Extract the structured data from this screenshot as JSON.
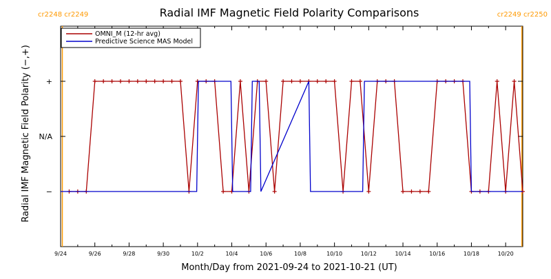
{
  "chart_data": {
    "type": "line",
    "title": "Radial IMF Magnetic Field Polarity Comparisons",
    "xlabel": "Month/Day from 2021-09-24 to 2021-10-21 (UT)",
    "ylabel": "Radial IMF Magnetic Field Polarity (−,+)",
    "x_range_days": [
      0,
      27
    ],
    "y_levels": {
      "-": -1,
      "N/A": 0,
      "+": 1
    },
    "ylim": [
      -2,
      2
    ],
    "y_ticks": [
      {
        "value": 1,
        "label": "+"
      },
      {
        "value": 0,
        "label": "N/A"
      },
      {
        "value": -1,
        "label": "−"
      }
    ],
    "x_ticks": [
      {
        "day": 0,
        "label": "9/24"
      },
      {
        "day": 2,
        "label": "9/26"
      },
      {
        "day": 4,
        "label": "9/28"
      },
      {
        "day": 6,
        "label": "9/30"
      },
      {
        "day": 8,
        "label": "10/2"
      },
      {
        "day": 10,
        "label": "10/4"
      },
      {
        "day": 12,
        "label": "10/6"
      },
      {
        "day": 14,
        "label": "10/8"
      },
      {
        "day": 16,
        "label": "10/10"
      },
      {
        "day": 18,
        "label": "10/12"
      },
      {
        "day": 20,
        "label": "10/14"
      },
      {
        "day": 22,
        "label": "10/16"
      },
      {
        "day": 24,
        "label": "10/18"
      },
      {
        "day": 26,
        "label": "10/20"
      }
    ],
    "carrington_markers": [
      {
        "day": 0.1,
        "label": "cr2248 cr2249",
        "side": "left"
      },
      {
        "day": 26.95,
        "label": "cr2249 cr2250",
        "side": "right"
      }
    ],
    "legend_position": "top-left",
    "series": [
      {
        "name": "OMNI_M (12-hr avg)",
        "color": "#aa0000",
        "markers": true,
        "x": [
          0.5,
          1.0,
          1.5,
          2.0,
          2.5,
          3.0,
          3.5,
          4.0,
          4.5,
          5.0,
          5.5,
          6.0,
          6.5,
          7.0,
          7.5,
          8.0,
          8.5,
          9.0,
          9.5,
          10.0,
          10.5,
          11.0,
          11.5,
          12.0,
          12.5,
          13.0,
          13.5,
          14.0,
          14.5,
          15.0,
          15.5,
          16.0,
          16.5,
          17.0,
          17.5,
          18.0,
          18.5,
          19.0,
          19.5,
          20.0,
          20.5,
          21.0,
          21.5,
          22.0,
          22.5,
          23.0,
          23.5,
          24.0,
          24.5,
          25.0,
          25.5,
          26.0,
          26.5,
          27.0
        ],
        "y": [
          -1,
          -1,
          -1,
          1,
          1,
          1,
          1,
          1,
          1,
          1,
          1,
          1,
          1,
          1,
          -1,
          1,
          1,
          1,
          -1,
          -1,
          1,
          -1,
          1,
          1,
          -1,
          1,
          1,
          1,
          1,
          1,
          1,
          1,
          -1,
          1,
          1,
          -1,
          1,
          1,
          1,
          -1,
          -1,
          -1,
          -1,
          1,
          1,
          1,
          1,
          -1,
          -1,
          -1,
          1,
          -1,
          1,
          -1
        ]
      },
      {
        "name": "Predictive Science MAS Model",
        "color": "#0000cc",
        "markers": false,
        "x": [
          0.0,
          7.95,
          8.05,
          9.95,
          10.05,
          11.1,
          11.2,
          11.6,
          11.7,
          14.5,
          14.6,
          17.65,
          17.75,
          23.9,
          24.0,
          27.0
        ],
        "y": [
          -1,
          -1,
          1,
          1,
          -1,
          -1,
          1,
          1,
          -1,
          1,
          -1,
          -1,
          1,
          1,
          -1,
          -1
        ]
      }
    ]
  }
}
